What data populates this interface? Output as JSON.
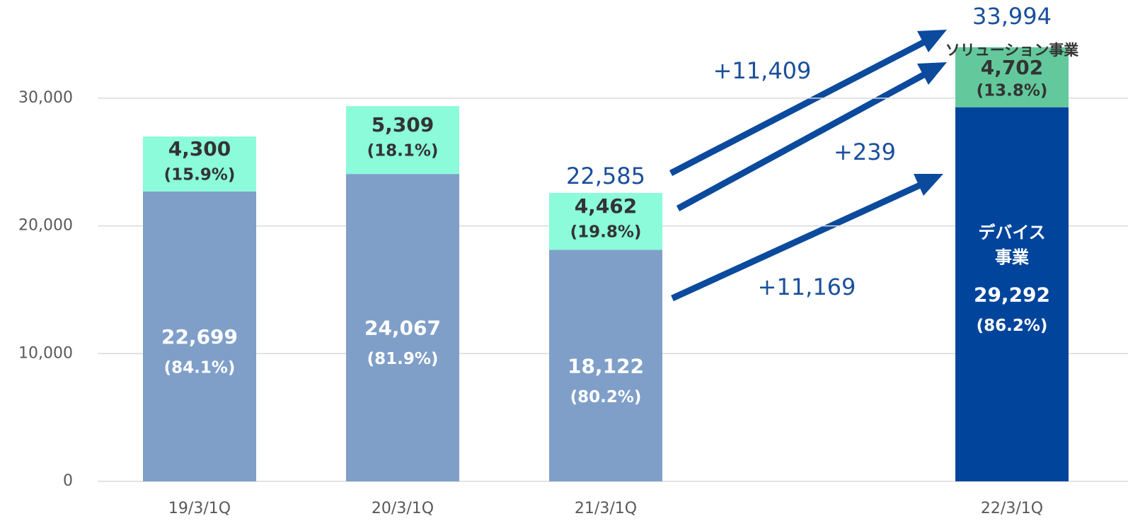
{
  "chart_data": {
    "type": "stacked_bar",
    "categories": [
      "19/3/1Q",
      "20/3/1Q",
      "21/3/1Q",
      null,
      "22/3/1Q"
    ],
    "series": [
      {
        "name_lines": [
          "デバイス",
          "事業"
        ],
        "colors": [
          "#7f9fc9",
          "#7f9fc9",
          "#7f9fc9",
          null,
          "#00459b"
        ],
        "values": [
          22699,
          24067,
          18122,
          null,
          29292
        ],
        "value_labels": [
          "22,699",
          "24,067",
          "18,122",
          null,
          "29,292"
        ],
        "share_labels": [
          "(84.1%)",
          "(81.9%)",
          "(80.2%)",
          null,
          "(86.2%)"
        ]
      },
      {
        "name_lines": [
          "ソリューション事業"
        ],
        "colors": [
          "#8bfbd9",
          "#8bfbd9",
          "#8bfbd9",
          null,
          "#63c99c"
        ],
        "values": [
          4300,
          5309,
          4462,
          null,
          4702
        ],
        "value_labels": [
          "4,300",
          "5,309",
          "4,462",
          null,
          "4,702"
        ],
        "share_labels": [
          "(15.9%)",
          "(18.1%)",
          "(19.8%)",
          null,
          "(13.8%)"
        ]
      }
    ],
    "totals": [
      null,
      null,
      22585,
      null,
      33994
    ],
    "total_labels": [
      null,
      null,
      "22,585",
      null,
      "33,994"
    ],
    "annotations": [
      "+11,409",
      "+239",
      "+11,169"
    ],
    "ylim": [
      0,
      36000
    ],
    "yticks": [
      0,
      {
        "value": 10000,
        "label": "10,000"
      },
      {
        "value": 20000,
        "label": "20,000"
      },
      {
        "value": 30000,
        "label": "30,000"
      }
    ],
    "grid": true
  }
}
